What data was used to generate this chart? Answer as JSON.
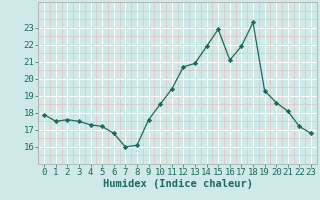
{
  "x": [
    0,
    1,
    2,
    3,
    4,
    5,
    6,
    7,
    8,
    9,
    10,
    11,
    12,
    13,
    14,
    15,
    16,
    17,
    18,
    19,
    20,
    21,
    22,
    23
  ],
  "y": [
    17.9,
    17.5,
    17.6,
    17.5,
    17.3,
    17.2,
    16.8,
    16.0,
    16.1,
    17.6,
    18.5,
    19.4,
    20.7,
    20.9,
    21.9,
    22.9,
    21.1,
    21.9,
    23.3,
    19.3,
    18.6,
    18.1,
    17.2,
    16.8
  ],
  "xlabel": "Humidex (Indice chaleur)",
  "xlim": [
    -0.5,
    23.5
  ],
  "ylim": [
    15.5,
    23.8
  ],
  "yticks": [
    16,
    17,
    18,
    19,
    20,
    21,
    22,
    23
  ],
  "xticks": [
    0,
    1,
    2,
    3,
    4,
    5,
    6,
    7,
    8,
    9,
    10,
    11,
    12,
    13,
    14,
    15,
    16,
    17,
    18,
    19,
    20,
    21,
    22,
    23
  ],
  "line_color": "#1a6b5a",
  "marker_color": "#1a6b5a",
  "bg_color": "#cfe8e8",
  "grid_color": "#ffffff",
  "grid_minor_color": "#ddeedd",
  "tick_color": "#1a6b5a",
  "tick_label_fontsize": 6.5,
  "xlabel_fontsize": 7.5
}
